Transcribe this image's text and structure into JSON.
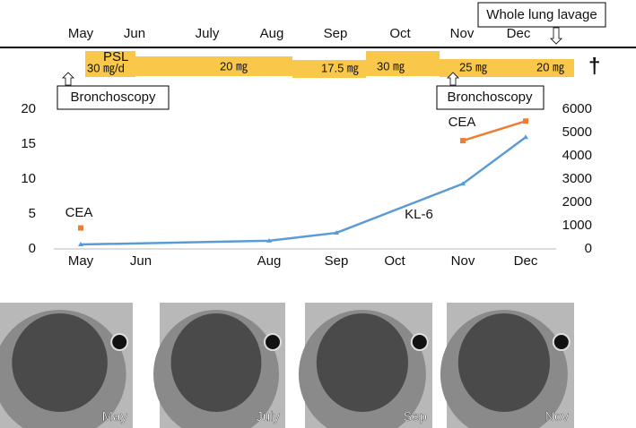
{
  "timeline": {
    "months": [
      "May",
      "Jun",
      "July",
      "Aug",
      "Sep",
      "Oct",
      "Nov",
      "Dec"
    ],
    "lavage": "Whole lung lavage",
    "bronchoscopy": [
      "Bronchoscopy",
      "Bronchoscopy"
    ],
    "psl_label": "PSL",
    "doses": [
      "30 ㎎/d",
      "20 ㎎",
      "17.5 ㎎",
      "30 ㎎",
      "25 ㎎",
      "20 ㎎"
    ],
    "death": "†"
  },
  "chart_data": {
    "type": "line",
    "categories": [
      "May",
      "Jun",
      null,
      "Aug",
      "Sep",
      "Oct",
      "Nov",
      "Dec"
    ],
    "ylim": [
      0,
      20
    ],
    "yticks": [
      0,
      5,
      10,
      15,
      20
    ],
    "y2lim": [
      0,
      6000
    ],
    "y2ticks": [
      0,
      1000,
      2000,
      3000,
      4000,
      5000,
      6000
    ],
    "series": [
      {
        "name": "CEA",
        "color": "#ed7d31",
        "values": [
          3,
          null,
          null,
          null,
          null,
          null,
          15.5,
          18.3
        ]
      },
      {
        "name": "KL-6",
        "color": "#5b9bd5",
        "axis": "y2",
        "x": [
          "May",
          "Aug",
          "Sep",
          "Nov",
          "Dec"
        ],
        "values": [
          190,
          350,
          690,
          2800,
          4800
        ]
      }
    ],
    "annotations": [
      "CEA",
      "CEA",
      "KL-6"
    ]
  },
  "images": [
    "May",
    "July",
    "Sep",
    "Nov"
  ]
}
